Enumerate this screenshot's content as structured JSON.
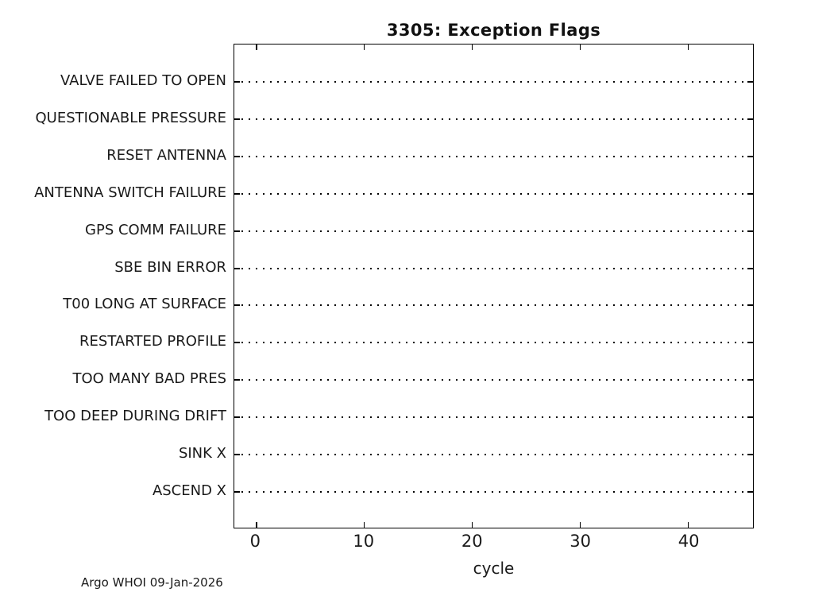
{
  "chart_data": {
    "type": "scatter",
    "title": "3305: Exception Flags",
    "xlabel": "cycle",
    "categories": [
      "VALVE FAILED TO OPEN",
      "QUESTIONABLE PRESSURE",
      "RESET ANTENNA",
      "ANTENNA SWITCH FAILURE",
      "GPS COMM FAILURE",
      "SBE BIN ERROR",
      "T00 LONG AT SURFACE",
      "RESTARTED PROFILE",
      "TOO MANY BAD PRES",
      "TOO DEEP DURING DRIFT",
      "SINK X",
      "ASCEND X"
    ],
    "points": [],
    "xlim": [
      -2,
      46
    ],
    "xticks": [
      0,
      10,
      20,
      30,
      40
    ],
    "grid": "dotted horizontal line per category row",
    "legend": "none",
    "annotation": "Argo WHOI 09-Jan-2026",
    "colors": {
      "text": "#1a1a1a",
      "line": "#000000",
      "background": "#ffffff"
    }
  }
}
